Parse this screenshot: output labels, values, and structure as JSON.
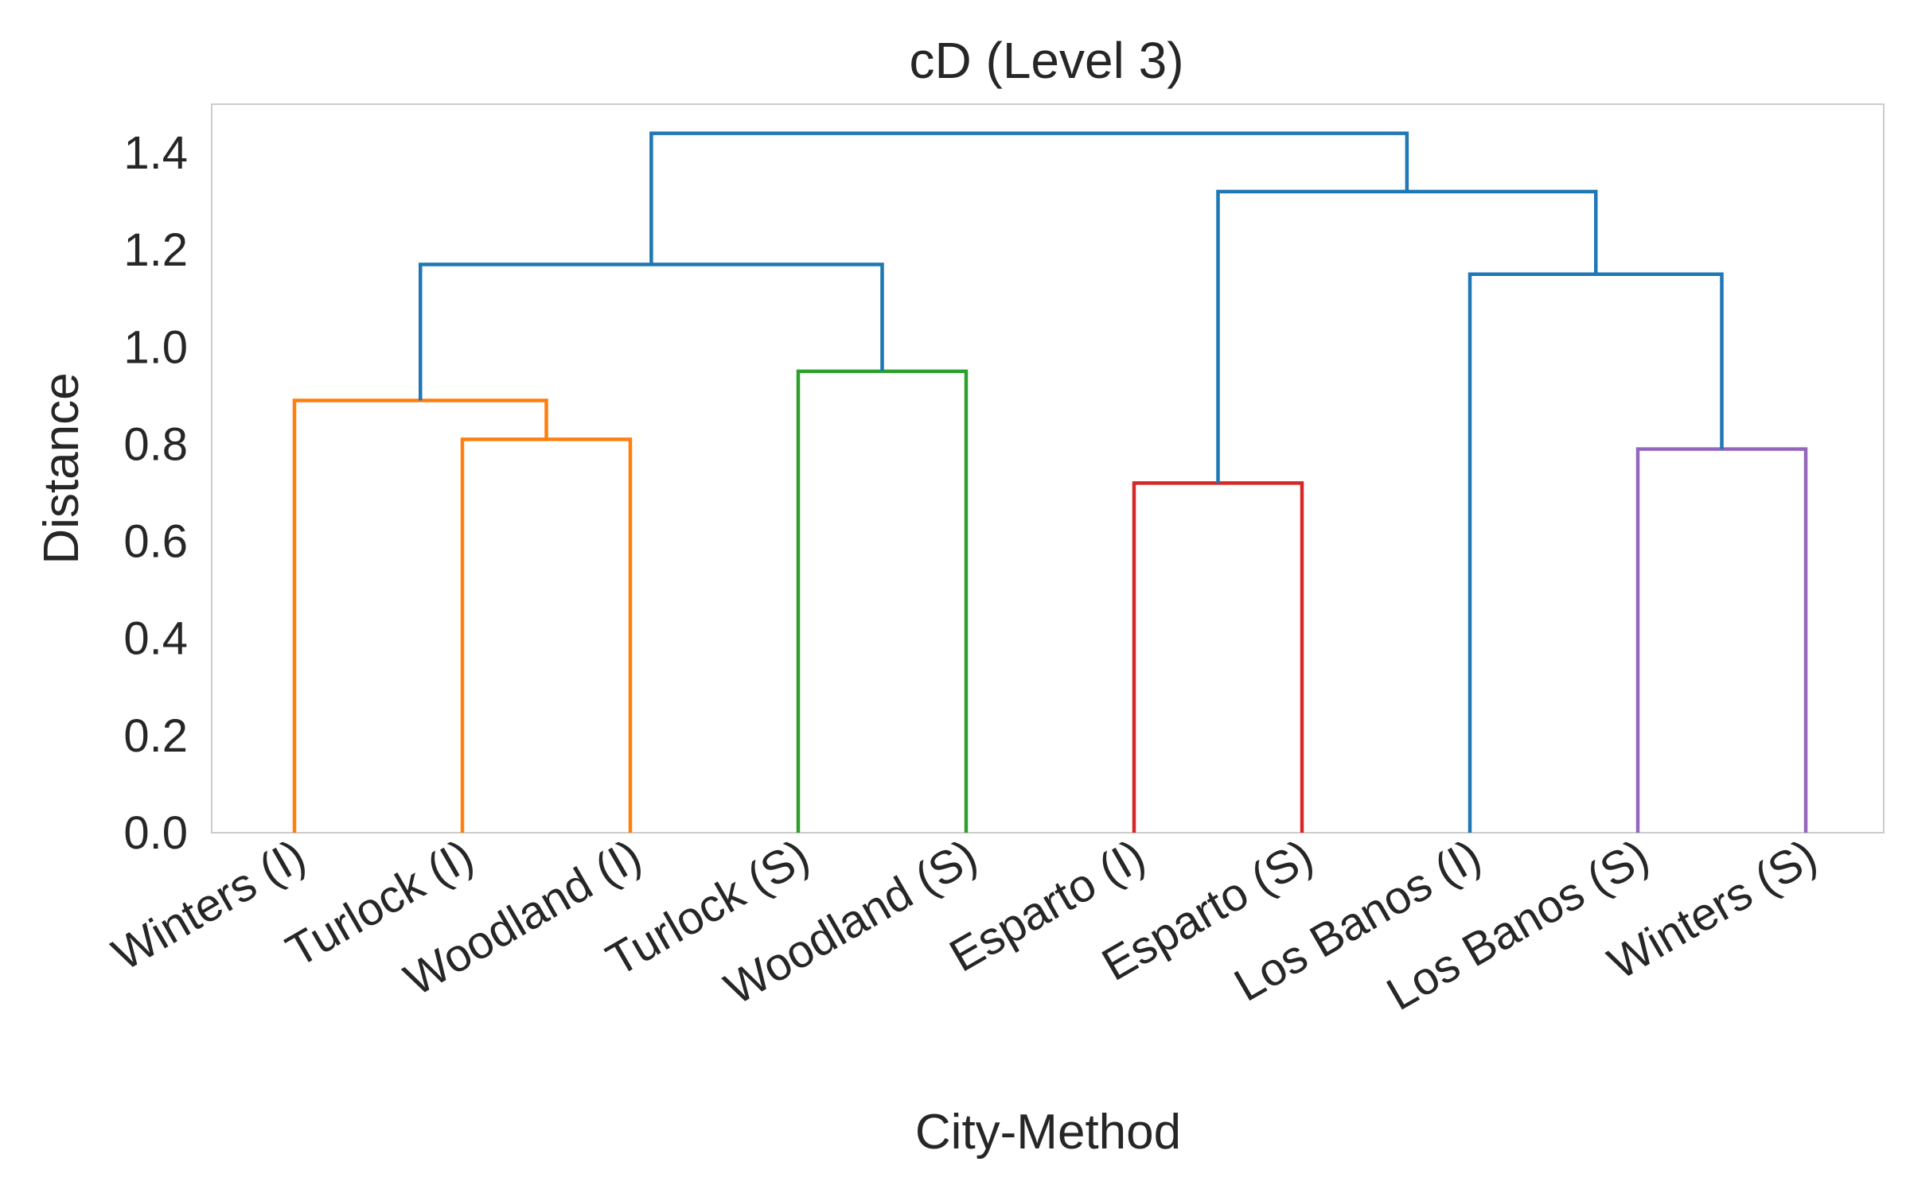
{
  "chart_data": {
    "type": "dendrogram",
    "title": "cD (Level 3)",
    "xlabel": "City-Method",
    "ylabel": "Distance",
    "ylim": [
      0,
      1.5
    ],
    "yticks": [
      0.0,
      0.2,
      0.4,
      0.6,
      0.8,
      1.0,
      1.2,
      1.4
    ],
    "ytick_labels": [
      "0.0",
      "0.2",
      "0.4",
      "0.6",
      "0.8",
      "1.0",
      "1.2",
      "1.4"
    ],
    "grid": false,
    "colors": {
      "orange": "#ff7f0e",
      "green": "#2ca02c",
      "red": "#d62728",
      "purple": "#9467bd",
      "blue": "#1f77b4"
    },
    "leaves": [
      "Winters (I)",
      "Turlock (I)",
      "Woodland (I)",
      "Turlock (S)",
      "Woodland (S)",
      "Esparto (I)",
      "Esparto (S)",
      "Los Banos (I)",
      "Los Banos (S)",
      "Winters (S)"
    ],
    "merges": [
      {
        "id": "m1",
        "children": [
          "L1",
          "L2"
        ],
        "height": 0.81,
        "color": "orange"
      },
      {
        "id": "m2",
        "children": [
          "L0",
          "m1"
        ],
        "height": 0.89,
        "color": "orange"
      },
      {
        "id": "m3",
        "children": [
          "L3",
          "L4"
        ],
        "height": 0.95,
        "color": "green"
      },
      {
        "id": "m4",
        "children": [
          "L5",
          "L6"
        ],
        "height": 0.72,
        "color": "red"
      },
      {
        "id": "m5",
        "children": [
          "L8",
          "L9"
        ],
        "height": 0.79,
        "color": "purple"
      },
      {
        "id": "m6",
        "children": [
          "L7",
          "m5"
        ],
        "height": 1.15,
        "color": "blue"
      },
      {
        "id": "m7",
        "children": [
          "m2",
          "m3"
        ],
        "height": 1.17,
        "color": "blue"
      },
      {
        "id": "m8",
        "children": [
          "m4",
          "m6"
        ],
        "height": 1.32,
        "color": "blue"
      },
      {
        "id": "m9",
        "children": [
          "m7",
          "m8"
        ],
        "height": 1.44,
        "color": "blue"
      }
    ]
  }
}
